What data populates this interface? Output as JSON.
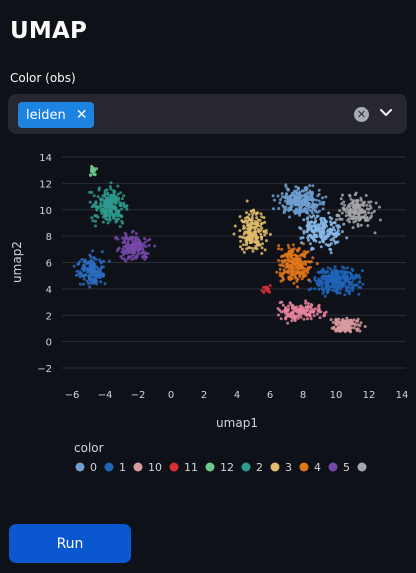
{
  "page": {
    "title": "UMAP"
  },
  "color_select": {
    "label": "Color (obs)",
    "selected": "leiden",
    "remove_icon": "close-icon",
    "clear_icon": "clear-circle-icon",
    "dropdown_icon": "chevron-down-icon"
  },
  "chart_data": {
    "type": "scatter",
    "xlabel": "umap1",
    "ylabel": "umap2",
    "xlim": [
      -6.5,
      14.5
    ],
    "ylim": [
      -3,
      14.7
    ],
    "xticks": [
      -6,
      -4,
      -2,
      0,
      2,
      4,
      6,
      8,
      10,
      12,
      14
    ],
    "yticks": [
      -2,
      0,
      2,
      4,
      6,
      8,
      10,
      12,
      14
    ],
    "grid": true,
    "legend": {
      "title": "color",
      "placement": "bottom"
    },
    "series": [
      {
        "name": "0",
        "color": "#6f9fd0",
        "center": [
          7.9,
          10.6
        ],
        "spread": [
          1.3,
          1.0
        ],
        "n": 260
      },
      {
        "name": "1",
        "color": "#1f64b8",
        "center": [
          10.0,
          4.6
        ],
        "spread": [
          1.3,
          1.0
        ],
        "n": 280
      },
      {
        "name": "10",
        "color": "#d99a9f",
        "center": [
          10.6,
          1.2
        ],
        "spread": [
          0.9,
          0.6
        ],
        "n": 120
      },
      {
        "name": "11",
        "color": "#d62f36",
        "center": [
          5.8,
          4.0
        ],
        "spread": [
          0.3,
          0.3
        ],
        "n": 20
      },
      {
        "name": "12",
        "color": "#6ec98a",
        "center": [
          -4.7,
          13.0
        ],
        "spread": [
          0.2,
          0.4
        ],
        "n": 22
      },
      {
        "name": "2",
        "color": "#2d9a8c",
        "center": [
          -3.7,
          10.3
        ],
        "spread": [
          1.0,
          1.2
        ],
        "n": 230
      },
      {
        "name": "3",
        "color": "#e0bc6b",
        "center": [
          4.9,
          8.4
        ],
        "spread": [
          0.8,
          1.6
        ],
        "n": 180
      },
      {
        "name": "4",
        "color": "#e1751a",
        "center": [
          7.5,
          5.9
        ],
        "spread": [
          1.0,
          1.4
        ],
        "n": 230
      },
      {
        "name": "5",
        "color": "#7448a8",
        "center": [
          -2.3,
          7.2
        ],
        "spread": [
          1.0,
          1.0
        ],
        "n": 170
      },
      {
        "name": "",
        "color": "#a4a6ab",
        "center": [
          11.2,
          9.9
        ],
        "spread": [
          1.0,
          1.1
        ],
        "n": 160
      },
      {
        "name": "",
        "color": "#2a6cc0",
        "center": [
          -4.8,
          5.4
        ],
        "spread": [
          0.8,
          1.1
        ],
        "n": 160
      },
      {
        "name": "",
        "color": "#e7829f",
        "center": [
          7.8,
          2.3
        ],
        "spread": [
          1.3,
          0.7
        ],
        "n": 150
      },
      {
        "name": "",
        "color": "#87b9e8",
        "center": [
          9.2,
          8.4
        ],
        "spread": [
          1.2,
          1.2
        ],
        "n": 200
      }
    ]
  },
  "actions": {
    "run_label": "Run"
  }
}
